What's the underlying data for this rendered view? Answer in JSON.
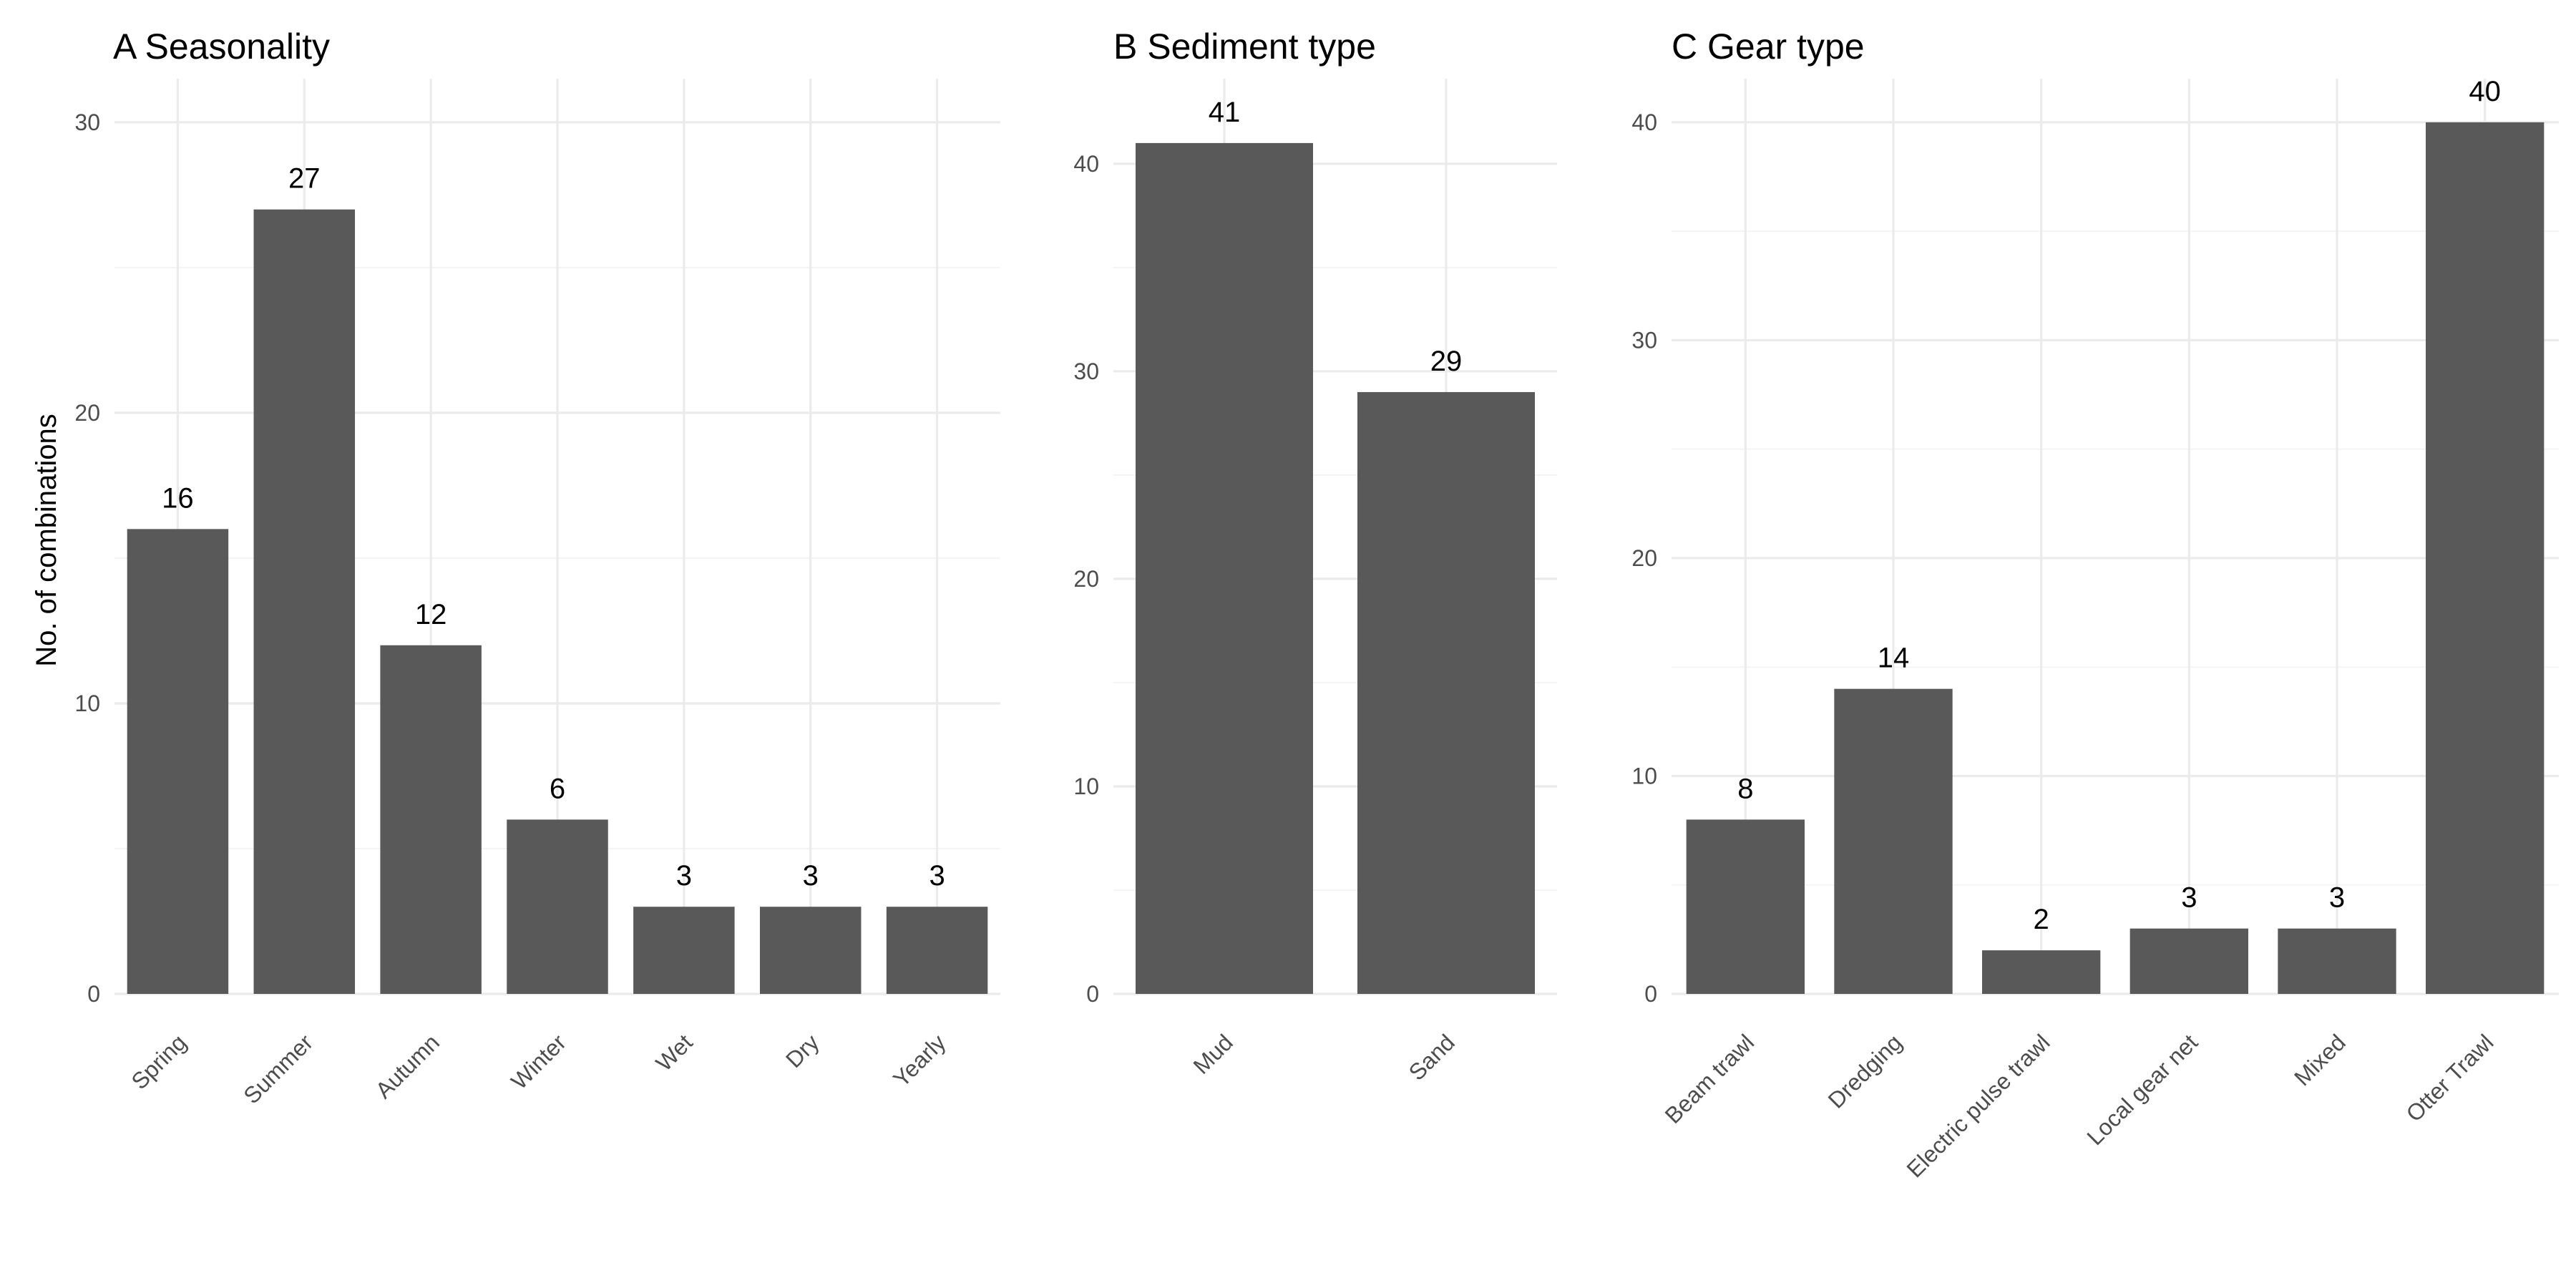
{
  "figure": {
    "ylabel": "No. of combinations",
    "bar_color": "#595959",
    "grid_color": "#ebebeb"
  },
  "chart_data": [
    {
      "type": "bar",
      "title": "A  Seasonality",
      "categories": [
        "Spring",
        "Summer",
        "Autumn",
        "Winter",
        "Wet",
        "Dry",
        "Yearly"
      ],
      "values": [
        16,
        27,
        12,
        6,
        3,
        3,
        3
      ],
      "ylabel": "No. of combinations",
      "ylim": [
        0,
        30
      ],
      "yticks": [
        0,
        10,
        20,
        30
      ],
      "grid": true
    },
    {
      "type": "bar",
      "title": "B  Sediment type",
      "categories": [
        "Mud",
        "Sand"
      ],
      "values": [
        41,
        29
      ],
      "ylabel": "",
      "ylim": [
        0,
        40
      ],
      "yticks": [
        0,
        10,
        20,
        30,
        40
      ],
      "grid": true
    },
    {
      "type": "bar",
      "title": "C  Gear type",
      "categories": [
        "Beam trawl",
        "Dredging",
        "Electric pulse trawl",
        "Local gear net",
        "Mixed",
        "Otter Trawl"
      ],
      "values": [
        8,
        14,
        2,
        3,
        3,
        40
      ],
      "ylabel": "",
      "ylim": [
        0,
        40
      ],
      "yticks": [
        0,
        10,
        20,
        30,
        40
      ],
      "grid": true
    }
  ]
}
